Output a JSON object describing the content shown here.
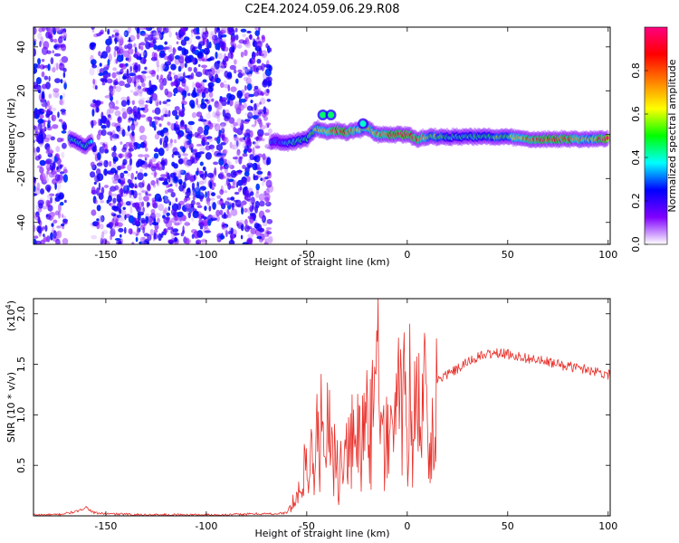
{
  "figure": {
    "title": "C2E4.2024.059.06.29.R08"
  },
  "chart_data": [
    {
      "type": "heatmap",
      "xlabel": "Height of straight line (km)",
      "ylabel": "Frequency (Hz)",
      "xlim": [
        -186,
        101
      ],
      "ylim": [
        -50,
        49
      ],
      "x_ticks": [
        -150,
        -100,
        -50,
        0,
        50,
        100
      ],
      "y_ticks": [
        -40,
        -20,
        0,
        20,
        40
      ],
      "colorbar": {
        "label": "Normalized spectral amplitude",
        "range": [
          0,
          1
        ],
        "ticks": [
          0.0,
          0.2,
          0.4,
          0.6,
          0.8
        ],
        "colors": [
          "#ffffff",
          "#8000ff",
          "#0000ff",
          "#00ffff",
          "#00ff00",
          "#ffff00",
          "#ff8000",
          "#ff0000",
          "#ff0080"
        ]
      },
      "noise_regions": [
        {
          "x": [
            -186,
            -170
          ],
          "amplitude": 0.15
        },
        {
          "x": [
            -157,
            -68
          ],
          "amplitude": 0.15
        }
      ],
      "ridge": {
        "x": [
          -168,
          -163,
          -160,
          -157,
          -65,
          -60,
          -55,
          -50,
          -45,
          -40,
          -35,
          -30,
          -25,
          -20,
          -15,
          -10,
          -5,
          0,
          5,
          10,
          20,
          30,
          40,
          50,
          60,
          70,
          80,
          90,
          100
        ],
        "frequency": [
          -2,
          -4,
          -5,
          -3,
          -3,
          -4,
          -3,
          -2,
          3,
          1,
          2,
          1,
          2,
          3,
          0,
          0,
          0,
          0,
          -2,
          -1,
          -1,
          -1,
          -1,
          -1,
          -2,
          -2,
          -2,
          -2,
          -2
        ],
        "amplitude": [
          0.45,
          0.4,
          0.45,
          0.35,
          0.3,
          0.35,
          0.45,
          0.45,
          0.6,
          0.7,
          0.85,
          0.8,
          0.6,
          0.65,
          0.7,
          0.85,
          0.9,
          0.95,
          0.8,
          0.6,
          0.45,
          0.45,
          0.5,
          0.55,
          0.8,
          0.85,
          0.85,
          0.6,
          0.9
        ]
      },
      "bursts": [
        {
          "x": -42,
          "frequency": 9,
          "amplitude": 0.45
        },
        {
          "x": -38,
          "frequency": 9,
          "amplitude": 0.45
        },
        {
          "x": -22,
          "frequency": 5,
          "amplitude": 0.4
        }
      ]
    },
    {
      "type": "line",
      "xlabel": "Height of straight line (km)",
      "ylabel": "SNR (10 * v/v)",
      "y_multiplier_label": "(x10",
      "y_multiplier_exp": "4",
      "y_multiplier_close": ")",
      "xlim": [
        -186,
        101
      ],
      "ylim": [
        0,
        2.15
      ],
      "x_ticks": [
        -150,
        -100,
        -50,
        0,
        50,
        100
      ],
      "y_ticks": [
        0.5,
        1.0,
        1.5,
        2.0
      ],
      "y_tick_labels": [
        "0.5",
        "1.0",
        "1.5",
        "2.0"
      ],
      "series": [
        {
          "color": "#e8302a",
          "x": [
            -186,
            -175,
            -168,
            -163,
            -160,
            -156,
            -150,
            -130,
            -110,
            -90,
            -75,
            -65,
            -60,
            -57,
            -55,
            -52,
            -50,
            -47,
            -45,
            -43,
            -41,
            -40,
            -38,
            -36,
            -34,
            -32,
            -30,
            -28,
            -26,
            -24,
            -22,
            -20,
            -18,
            -16,
            -15,
            -14,
            -12,
            -10,
            -8,
            -6,
            -4,
            -2,
            0,
            2,
            4,
            6,
            8,
            10,
            12,
            15,
            20,
            25,
            30,
            35,
            40,
            45,
            50,
            55,
            60,
            70,
            80,
            90,
            100
          ],
          "y": [
            0.01,
            0.01,
            0.03,
            0.05,
            0.09,
            0.03,
            0.02,
            0.01,
            0.01,
            0.01,
            0.02,
            0.02,
            0.03,
            0.15,
            0.25,
            0.4,
            0.6,
            0.75,
            0.9,
            1.1,
            1.0,
            1.25,
            0.85,
            0.6,
            0.45,
            0.55,
            0.7,
            0.85,
            1.0,
            0.9,
            1.05,
            1.15,
            1.3,
            1.1,
            2.1,
            0.9,
            0.75,
            0.9,
            1.05,
            1.1,
            1.25,
            1.3,
            1.35,
            1.3,
            1.2,
            1.35,
            1.4,
            1.35,
            1.3,
            1.35,
            1.4,
            1.45,
            1.52,
            1.57,
            1.6,
            1.61,
            1.6,
            1.58,
            1.56,
            1.52,
            1.48,
            1.45,
            1.4
          ]
        }
      ]
    }
  ]
}
